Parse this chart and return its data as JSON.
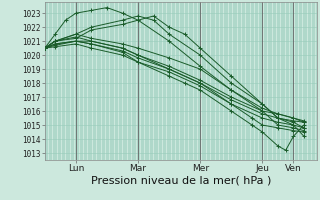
{
  "bg_color": "#cce8dd",
  "grid_color": "#99ccbb",
  "line_color": "#1a5c2a",
  "ylim": [
    1012.5,
    1023.8
  ],
  "yticks": [
    1013,
    1014,
    1015,
    1016,
    1017,
    1018,
    1019,
    1020,
    1021,
    1022,
    1023
  ],
  "xlabel": "Pression niveau de la mer( hPa )",
  "xlabel_fontsize": 8,
  "day_labels": [
    "Lun",
    "Mar",
    "Mer",
    "Jeu",
    "Ven"
  ],
  "day_positions": [
    24,
    72,
    120,
    168,
    192
  ],
  "xlim": [
    0,
    210
  ],
  "n_xgrid": 211,
  "series": [
    [
      [
        0,
        1020.5
      ],
      [
        8,
        1020.8
      ],
      [
        24,
        1021.0
      ],
      [
        36,
        1021.0
      ],
      [
        60,
        1020.5
      ],
      [
        72,
        1020.0
      ],
      [
        96,
        1019.0
      ],
      [
        120,
        1018.0
      ],
      [
        144,
        1016.5
      ],
      [
        160,
        1015.5
      ],
      [
        168,
        1015.0
      ],
      [
        180,
        1014.8
      ],
      [
        192,
        1014.6
      ],
      [
        200,
        1014.5
      ]
    ],
    [
      [
        0,
        1020.5
      ],
      [
        8,
        1021.0
      ],
      [
        24,
        1021.2
      ],
      [
        36,
        1021.8
      ],
      [
        60,
        1022.2
      ],
      [
        72,
        1022.5
      ],
      [
        84,
        1022.8
      ],
      [
        96,
        1022.0
      ],
      [
        108,
        1021.5
      ],
      [
        120,
        1020.5
      ],
      [
        144,
        1018.5
      ],
      [
        168,
        1016.5
      ],
      [
        180,
        1015.5
      ],
      [
        192,
        1015.2
      ],
      [
        200,
        1014.8
      ]
    ],
    [
      [
        0,
        1020.5
      ],
      [
        8,
        1021.5
      ],
      [
        16,
        1022.5
      ],
      [
        24,
        1023.0
      ],
      [
        36,
        1023.2
      ],
      [
        48,
        1023.4
      ],
      [
        60,
        1023.0
      ],
      [
        72,
        1022.5
      ],
      [
        96,
        1021.0
      ],
      [
        120,
        1019.2
      ],
      [
        144,
        1017.5
      ],
      [
        168,
        1016.0
      ],
      [
        180,
        1015.0
      ],
      [
        192,
        1014.8
      ],
      [
        200,
        1014.6
      ]
    ],
    [
      [
        0,
        1020.5
      ],
      [
        8,
        1021.0
      ],
      [
        24,
        1021.5
      ],
      [
        36,
        1022.0
      ],
      [
        60,
        1022.5
      ],
      [
        72,
        1022.8
      ],
      [
        84,
        1022.5
      ],
      [
        96,
        1021.5
      ],
      [
        120,
        1020.0
      ],
      [
        144,
        1018.0
      ],
      [
        168,
        1016.5
      ],
      [
        180,
        1015.5
      ],
      [
        192,
        1015.0
      ],
      [
        200,
        1014.2
      ]
    ],
    [
      [
        0,
        1020.5
      ],
      [
        8,
        1020.8
      ],
      [
        24,
        1021.0
      ],
      [
        36,
        1020.8
      ],
      [
        60,
        1020.2
      ],
      [
        72,
        1019.5
      ],
      [
        96,
        1018.5
      ],
      [
        108,
        1018.0
      ],
      [
        120,
        1017.5
      ],
      [
        144,
        1016.0
      ],
      [
        160,
        1015.0
      ],
      [
        168,
        1014.5
      ],
      [
        180,
        1013.5
      ],
      [
        186,
        1013.2
      ],
      [
        192,
        1014.2
      ],
      [
        200,
        1015.0
      ]
    ],
    [
      [
        0,
        1020.5
      ],
      [
        8,
        1020.6
      ],
      [
        24,
        1020.8
      ],
      [
        36,
        1020.5
      ],
      [
        60,
        1020.0
      ],
      [
        72,
        1019.5
      ],
      [
        96,
        1018.8
      ],
      [
        120,
        1017.8
      ],
      [
        144,
        1016.5
      ],
      [
        168,
        1015.5
      ],
      [
        180,
        1015.2
      ],
      [
        192,
        1015.0
      ],
      [
        200,
        1014.8
      ]
    ],
    [
      [
        0,
        1020.5
      ],
      [
        8,
        1020.7
      ],
      [
        24,
        1021.0
      ],
      [
        36,
        1020.8
      ],
      [
        60,
        1020.3
      ],
      [
        72,
        1019.8
      ],
      [
        96,
        1019.0
      ],
      [
        120,
        1018.0
      ],
      [
        144,
        1016.8
      ],
      [
        168,
        1015.8
      ],
      [
        180,
        1015.5
      ],
      [
        192,
        1015.3
      ],
      [
        200,
        1015.2
      ]
    ],
    [
      [
        0,
        1020.5
      ],
      [
        8,
        1021.0
      ],
      [
        24,
        1021.3
      ],
      [
        36,
        1021.0
      ],
      [
        60,
        1020.5
      ],
      [
        72,
        1020.0
      ],
      [
        96,
        1019.2
      ],
      [
        120,
        1018.2
      ],
      [
        144,
        1017.0
      ],
      [
        168,
        1016.0
      ],
      [
        180,
        1015.8
      ],
      [
        192,
        1015.5
      ],
      [
        200,
        1015.3
      ]
    ],
    [
      [
        0,
        1020.5
      ],
      [
        8,
        1021.0
      ],
      [
        24,
        1021.5
      ],
      [
        36,
        1021.2
      ],
      [
        60,
        1020.8
      ],
      [
        72,
        1020.5
      ],
      [
        96,
        1019.8
      ],
      [
        120,
        1019.0
      ],
      [
        144,
        1017.5
      ],
      [
        168,
        1016.2
      ],
      [
        180,
        1015.8
      ],
      [
        192,
        1015.5
      ],
      [
        200,
        1015.2
      ]
    ]
  ]
}
